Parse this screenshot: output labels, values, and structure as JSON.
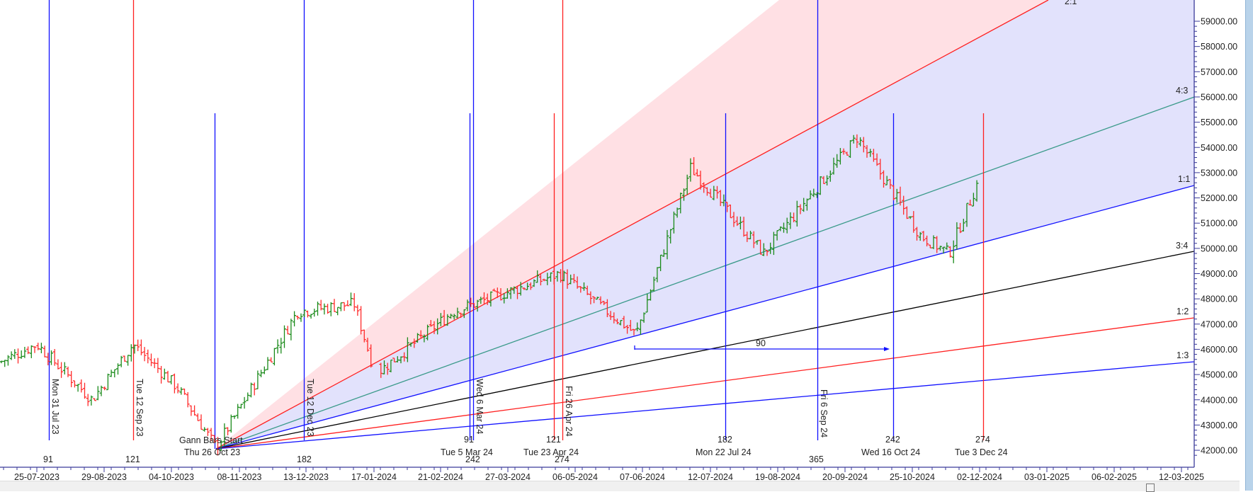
{
  "chart_data": {
    "type": "ohlc-bar",
    "title": "",
    "instrument_hint": "Bank index daily OHLC bars with Gann fan and Gann time cycle lines",
    "xlabel": "",
    "ylabel": "",
    "ylim": [
      41800,
      60000
    ],
    "grid": false,
    "y_ticks": [
      "59000.00",
      "58000.00",
      "57000.00",
      "56000.00",
      "55000.00",
      "54000.00",
      "53000.00",
      "52000.00",
      "51000.00",
      "50000.00",
      "49000.00",
      "48000.00",
      "47000.00",
      "46000.00",
      "45000.00",
      "44000.00",
      "43000.00",
      "42000.00"
    ],
    "x_ticks": [
      "25-07-2023",
      "29-08-2023",
      "04-10-2023",
      "08-11-2023",
      "13-12-2023",
      "17-01-2024",
      "21-02-2024",
      "27-03-2024",
      "06-05-2024",
      "07-06-2024",
      "12-07-2024",
      "19-08-2024",
      "20-09-2024",
      "25-10-2024",
      "02-12-2024",
      "03-01-2025",
      "06-02-2025",
      "12-03-2025"
    ],
    "gann_fan": {
      "origin_label": "Gann Bars Start",
      "origin_date": "Thu 26 Oct 23",
      "origin_price": 42100,
      "angles": [
        {
          "ratio": "2:1",
          "color": "#ff2020",
          "end_price": 60200
        },
        {
          "ratio": "4:3",
          "color": "#3a9a8a",
          "end_price": 56000
        },
        {
          "ratio": "1:1",
          "color": "#1010ff",
          "end_price": 52500
        },
        {
          "ratio": "3:4",
          "color": "#000000",
          "end_price": 49850
        },
        {
          "ratio": "1:2",
          "color": "#ff2020",
          "end_price": 47300
        },
        {
          "ratio": "1:3",
          "color": "#1010ff",
          "end_price": 45550
        }
      ],
      "fill_upper_color": "#ffe0e4",
      "fill_lower_color": "#e2e2fc"
    },
    "time_cycle_markers": [
      {
        "label": "Mon 31 Jul 23",
        "count": "91",
        "color": "#1010ff",
        "orientation": "vertical-text"
      },
      {
        "label": "Tue 12 Sep 23",
        "count": "121",
        "color": "#ff2020",
        "orientation": "vertical-text"
      },
      {
        "label": "Tue 12 Dec 23",
        "count": "182",
        "color": "#1010ff",
        "orientation": "vertical-text"
      },
      {
        "label": "Wed 6 Mar 24",
        "count": "242",
        "color": "#1010ff",
        "orientation": "vertical-text"
      },
      {
        "label": "Fri 26 Apr 24",
        "count": "274",
        "color": "#ff2020",
        "orientation": "vertical-text"
      },
      {
        "label": "Fri 6 Sep 24",
        "count": "365",
        "color": "#1010ff",
        "orientation": "vertical-text"
      },
      {
        "label": "Tue 5 Mar 24",
        "count": "91",
        "color": "#1010ff",
        "orientation": "horizontal-text"
      },
      {
        "label": "Tue 23 Apr 24",
        "count": "121",
        "color": "#ff2020",
        "orientation": "horizontal-text"
      },
      {
        "label": "Mon 22 Jul 24",
        "count": "182",
        "color": "#1010ff",
        "orientation": "horizontal-text"
      },
      {
        "label": "Wed 16 Oct 24",
        "count": "242",
        "color": "#1010ff",
        "orientation": "horizontal-text"
      },
      {
        "label": "Tue 3 Dec 24",
        "count": "274",
        "color": "#ff2020",
        "orientation": "horizontal-text"
      }
    ],
    "measure_arrow": {
      "label": "90",
      "price": 46000,
      "from": "Mon 10 Jun 24",
      "to": "Wed 16 Oct 24 (approx)"
    },
    "series": [
      {
        "name": "up bars",
        "color": "#1a8a1a"
      },
      {
        "name": "down bars",
        "color": "#ff2a2a"
      }
    ],
    "price_path_approx": [
      {
        "date": "Jul-2023",
        "price": 45500
      },
      {
        "date": "25-07-2023",
        "price": 46200
      },
      {
        "date": "Aug-2023",
        "price": 44000
      },
      {
        "date": "12-09-2023",
        "price": 46200
      },
      {
        "date": "Oct-2023",
        "price": 44500
      },
      {
        "date": "26-10-2023",
        "price": 42100
      },
      {
        "date": "Dec-2023",
        "price": 47500
      },
      {
        "date": "Jan-2024",
        "price": 47800
      },
      {
        "date": "Jan-2024 low",
        "price": 45000
      },
      {
        "date": "Mar-2024",
        "price": 47500
      },
      {
        "date": "Apr-2024",
        "price": 49000
      },
      {
        "date": "Jun-2024 low",
        "price": 46600
      },
      {
        "date": "Jul-2024",
        "price": 53200
      },
      {
        "date": "Aug-2024",
        "price": 49800
      },
      {
        "date": "Sep-2024",
        "price": 54400
      },
      {
        "date": "Oct-2024",
        "price": 50500
      },
      {
        "date": "Nov-2024",
        "price": 49800
      },
      {
        "date": "Dec-2024",
        "price": 52600
      }
    ]
  },
  "axis": {
    "y_labels": [
      "59000.00",
      "58000.00",
      "57000.00",
      "56000.00",
      "55000.00",
      "54000.00",
      "53000.00",
      "52000.00",
      "51000.00",
      "50000.00",
      "49000.00",
      "48000.00",
      "47000.00",
      "46000.00",
      "45000.00",
      "44000.00",
      "43000.00",
      "42000.00"
    ],
    "x_labels": [
      "25-07-2023",
      "29-08-2023",
      "04-10-2023",
      "08-11-2023",
      "13-12-2023",
      "17-01-2024",
      "21-02-2024",
      "27-03-2024",
      "06-05-2024",
      "07-06-2024",
      "12-07-2024",
      "19-08-2024",
      "20-09-2024",
      "25-10-2024",
      "02-12-2024",
      "03-01-2025",
      "06-02-2025",
      "12-03-2025"
    ]
  },
  "fan_labels": [
    "2:1",
    "4:3",
    "1:1",
    "3:4",
    "1:2",
    "1:3"
  ],
  "annotations": {
    "gann_start": "Gann Bars Start",
    "gann_start_date": "Thu 26 Oct 23",
    "measure": "90",
    "vertical_texts": [
      "Mon 31 Jul 23",
      "Tue 12 Sep 23",
      "Tue 12 Dec 23",
      "Wed 6 Mar 24",
      "Fri 26 Apr 24",
      "Fri 6 Sep 24"
    ],
    "counts": [
      "91",
      "121",
      "182",
      "91",
      "242",
      "121",
      "274",
      "182",
      "365",
      "242",
      "274"
    ],
    "dates_below": [
      "Tue 5 Mar 24",
      "Tue 23 Apr 24",
      "Mon 22 Jul 24",
      "Wed 16 Oct 24",
      "Tue 3 Dec 24"
    ]
  },
  "colors": {
    "axis": "#3b3b9a",
    "up": "#1a8a1a",
    "down": "#ff2a2a",
    "blue": "#1010ff",
    "red": "#ff2020",
    "teal": "#3a9a8a",
    "fill_red": "#ffe0e4",
    "fill_blue": "#e2e2fc"
  }
}
